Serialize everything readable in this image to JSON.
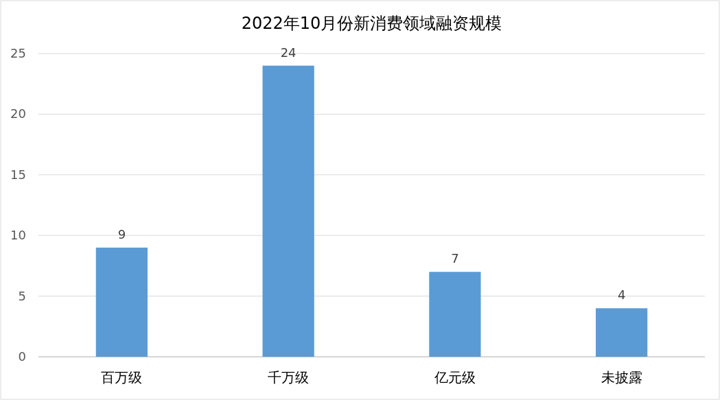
{
  "chart_data": {
    "type": "bar",
    "title": "2022年10月份新消费领域融资规模",
    "categories": [
      "百万级",
      "千万级",
      "亿元级",
      "未披露"
    ],
    "values": [
      9,
      24,
      7,
      4
    ],
    "color": "#5b9bd5",
    "ylim": [
      0,
      25
    ],
    "yticks": [
      0,
      5,
      10,
      15,
      20,
      25
    ],
    "grid": "y",
    "data_labels": true
  }
}
